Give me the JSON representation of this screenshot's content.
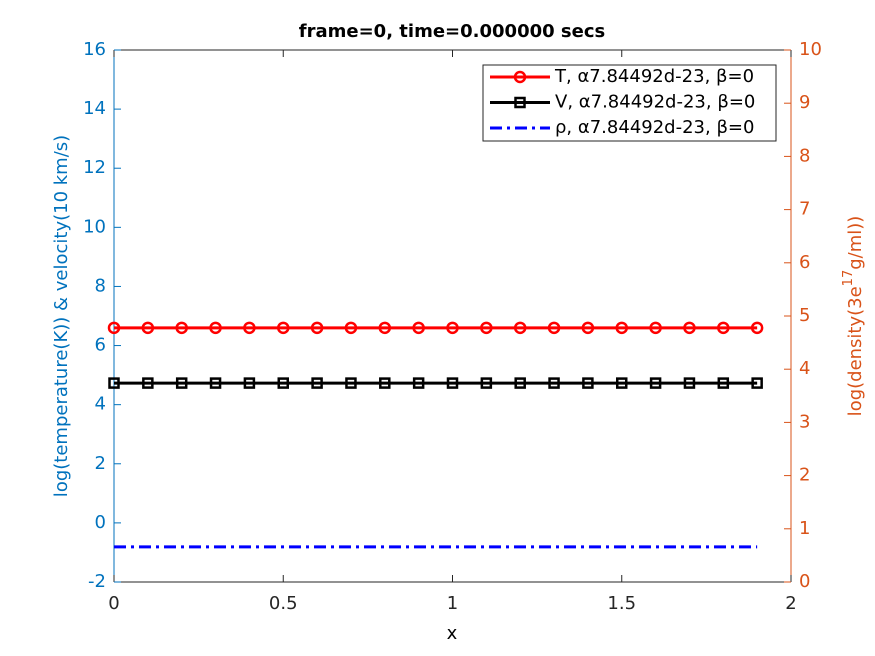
{
  "chart_data": {
    "type": "line",
    "title": "frame=0, time=0.000000 secs",
    "xlabel": "x",
    "ylabel": "log(temperature(K)) & velocity(10 km/s)",
    "y2label": [
      "log(density(3e",
      "17",
      "g/ml))"
    ],
    "x": [
      0,
      0.1,
      0.2,
      0.3,
      0.4,
      0.5,
      0.6,
      0.7,
      0.8,
      0.9,
      1,
      1.1,
      1.2,
      1.3,
      1.4,
      1.5,
      1.6,
      1.7,
      1.8,
      1.9
    ],
    "xlim": [
      0,
      2
    ],
    "xticks": [
      0,
      0.5,
      1,
      1.5,
      2
    ],
    "ylim": [
      -2,
      16
    ],
    "yticks": [
      -2,
      0,
      2,
      4,
      6,
      8,
      10,
      12,
      14,
      16
    ],
    "y2lim": [
      0,
      10
    ],
    "y2ticks": [
      0,
      1,
      2,
      3,
      4,
      5,
      6,
      7,
      8,
      9,
      10
    ],
    "y_color": "#0072bd",
    "y2_color": "#d95319",
    "legend": "northeast",
    "series": [
      {
        "name": "T, α7.84492d-23, β=0",
        "color": "#ff0000",
        "marker": "circle",
        "dash": "solid",
        "values": [
          6.6,
          6.6,
          6.6,
          6.6,
          6.6,
          6.6,
          6.6,
          6.6,
          6.6,
          6.6,
          6.6,
          6.6,
          6.6,
          6.6,
          6.6,
          6.6,
          6.6,
          6.6,
          6.6,
          6.6
        ]
      },
      {
        "name": "V, α7.84492d-23, β=0",
        "color": "#000000",
        "marker": "square",
        "dash": "solid",
        "values": [
          4.73,
          4.73,
          4.73,
          4.73,
          4.73,
          4.73,
          4.73,
          4.73,
          4.73,
          4.73,
          4.73,
          4.73,
          4.73,
          4.73,
          4.73,
          4.73,
          4.73,
          4.73,
          4.73,
          4.73
        ]
      },
      {
        "name": "ρ, α7.84492d-23, β=0",
        "color": "#0000ff",
        "marker": "none",
        "dash": "dashdot",
        "axis": "y2",
        "values": [
          0.66,
          0.66,
          0.66,
          0.66,
          0.66,
          0.66,
          0.66,
          0.66,
          0.66,
          0.66,
          0.66,
          0.66,
          0.66,
          0.66,
          0.66,
          0.66,
          0.66,
          0.66,
          0.66,
          0.66
        ]
      }
    ]
  }
}
